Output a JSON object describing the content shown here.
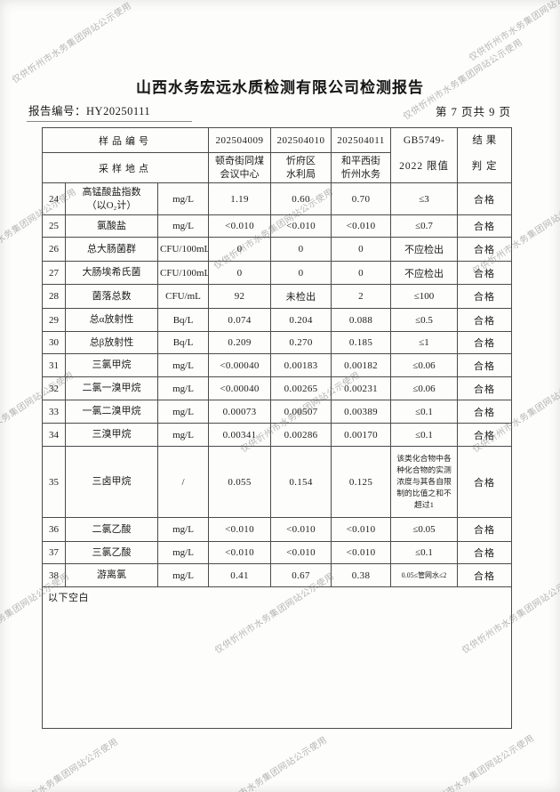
{
  "watermark": {
    "text": "仅供忻州市水务集团网站公示使用"
  },
  "header": {
    "title": "山西水务宏远水质检测有限公司检测报告",
    "report_no_label": "报告编号：",
    "report_no": "HY20250111",
    "page_info": "第 7 页共 9 页"
  },
  "table": {
    "columns": {
      "sample_no_label": "样品编号",
      "site_label": "采样地点",
      "limit_line1": "GB5749-",
      "limit_line2": "2022 限值",
      "result_line1": "结 果",
      "result_line2": "判 定"
    },
    "samples": [
      {
        "no": "202504009",
        "site": "顿奇街同煤\n会议中心"
      },
      {
        "no": "202504010",
        "site": "忻府区\n水利局"
      },
      {
        "no": "202504011",
        "site": "和平西街\n忻州水务"
      }
    ],
    "rows": [
      {
        "no": "24",
        "name": "高锰酸盐指数\n（以O₂计）",
        "unit": "mg/L",
        "v1": "1.19",
        "v2": "0.60",
        "v3": "0.70",
        "limit": "≤3",
        "result": "合格"
      },
      {
        "no": "25",
        "name": "氯酸盐",
        "unit": "mg/L",
        "v1": "<0.010",
        "v2": "<0.010",
        "v3": "<0.010",
        "limit": "≤0.7",
        "result": "合格"
      },
      {
        "no": "26",
        "name": "总大肠菌群",
        "unit": "CFU/100mL",
        "v1": "0",
        "v2": "0",
        "v3": "0",
        "limit": "不应检出",
        "result": "合格"
      },
      {
        "no": "27",
        "name": "大肠埃希氏菌",
        "unit": "CFU/100mL",
        "v1": "0",
        "v2": "0",
        "v3": "0",
        "limit": "不应检出",
        "result": "合格"
      },
      {
        "no": "28",
        "name": "菌落总数",
        "unit": "CFU/mL",
        "v1": "92",
        "v2": "未检出",
        "v3": "2",
        "limit": "≤100",
        "result": "合格"
      },
      {
        "no": "29",
        "name": "总α放射性",
        "unit": "Bq/L",
        "v1": "0.074",
        "v2": "0.204",
        "v3": "0.088",
        "limit": "≤0.5",
        "result": "合格"
      },
      {
        "no": "30",
        "name": "总β放射性",
        "unit": "Bq/L",
        "v1": "0.209",
        "v2": "0.270",
        "v3": "0.185",
        "limit": "≤1",
        "result": "合格"
      },
      {
        "no": "31",
        "name": "三氯甲烷",
        "unit": "mg/L",
        "v1": "<0.00040",
        "v2": "0.00183",
        "v3": "0.00182",
        "limit": "≤0.06",
        "result": "合格"
      },
      {
        "no": "32",
        "name": "二氯一溴甲烷",
        "unit": "mg/L",
        "v1": "<0.00040",
        "v2": "0.00265",
        "v3": "0.00231",
        "limit": "≤0.06",
        "result": "合格"
      },
      {
        "no": "33",
        "name": "一氯二溴甲烷",
        "unit": "mg/L",
        "v1": "0.00073",
        "v2": "0.00507",
        "v3": "0.00389",
        "limit": "≤0.1",
        "result": "合格"
      },
      {
        "no": "34",
        "name": "三溴甲烷",
        "unit": "mg/L",
        "v1": "0.00341",
        "v2": "0.00286",
        "v3": "0.00170",
        "limit": "≤0.1",
        "result": "合格"
      },
      {
        "no": "35",
        "name": "三卤甲烷",
        "unit": "/",
        "v1": "0.055",
        "v2": "0.154",
        "v3": "0.125",
        "limit": "该类化合物中各种化合物的实测浓度与其各自限制的比值之和不超过1",
        "result": "合格"
      },
      {
        "no": "36",
        "name": "二氯乙酸",
        "unit": "mg/L",
        "v1": "<0.010",
        "v2": "<0.010",
        "v3": "<0.010",
        "limit": "≤0.05",
        "result": "合格"
      },
      {
        "no": "37",
        "name": "三氯乙酸",
        "unit": "mg/L",
        "v1": "<0.010",
        "v2": "<0.010",
        "v3": "<0.010",
        "limit": "≤0.1",
        "result": "合格"
      },
      {
        "no": "38",
        "name": "游离氯",
        "unit": "mg/L",
        "v1": "0.41",
        "v2": "0.67",
        "v3": "0.38",
        "limit": "0.05≤管网水≤2",
        "result": "合格"
      }
    ],
    "footer_note": "以下空白"
  }
}
